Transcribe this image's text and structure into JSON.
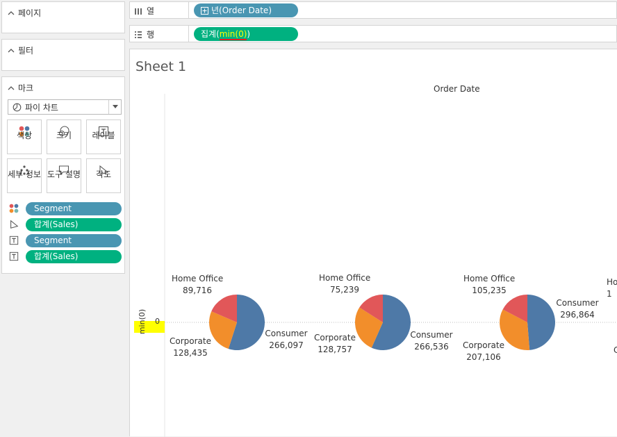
{
  "left_panel": {
    "pages": {
      "title": "페이지"
    },
    "filters": {
      "title": "필터"
    },
    "marks": {
      "title": "마크",
      "mark_type": "파이 차트",
      "buttons": {
        "color": "색상",
        "size": "크기",
        "label": "레이블",
        "detail": "세부 정보",
        "tooltip": "도구 설명",
        "angle": "각도"
      },
      "pills": [
        {
          "icon": "color-dots-icon",
          "text": "Segment",
          "color": "#4996b2"
        },
        {
          "icon": "angle-icon",
          "text": "합계(Sales)",
          "color": "#00b180"
        },
        {
          "icon": "label-icon",
          "text": "Segment",
          "color": "#4996b2"
        },
        {
          "icon": "label-icon",
          "text": "합계(Sales)",
          "color": "#00b180"
        }
      ]
    }
  },
  "shelves": {
    "columns": {
      "label": "열",
      "pill": "년(Order Date)",
      "color": "#4996b2"
    },
    "rows": {
      "label": "행",
      "pill_prefix": "집계(",
      "pill_highlight": "min(0)",
      "pill_suffix": ")",
      "color": "#00b180",
      "highlight_color": "#ffff00"
    }
  },
  "sheet": {
    "title": "Sheet 1",
    "column_header": "Order Date",
    "y_axis_title": "min(0)",
    "y_tick": "0",
    "cut_label_top": "Ho",
    "cut_label_top2": "1",
    "cut_label_bottom": "C"
  },
  "colors": {
    "consumer": "#4e79a7",
    "corporate": "#f28e2b",
    "home_office": "#e15759"
  },
  "chart_data": {
    "type": "pie",
    "title": "Order Date",
    "ylabel": "min(0)",
    "series_names": [
      "Consumer",
      "Corporate",
      "Home Office"
    ],
    "pies": [
      {
        "values": [
          266097,
          128435,
          89716
        ],
        "labels": [
          "266,097",
          "128,435",
          "89,716"
        ]
      },
      {
        "values": [
          266536,
          128757,
          75239
        ],
        "labels": [
          "266,536",
          "128,757",
          "75,239"
        ]
      },
      {
        "values": [
          296864,
          207106,
          105235
        ],
        "labels": [
          "296,864",
          "207,106",
          "105,235"
        ]
      }
    ]
  }
}
